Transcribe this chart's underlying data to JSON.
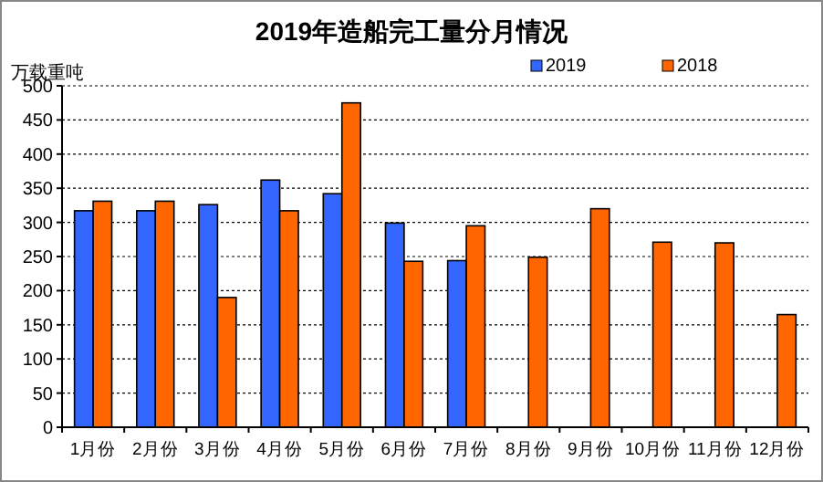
{
  "chart_data": {
    "type": "bar",
    "title": "2019年造船完工量分月情况",
    "ylabel": "万载重吨",
    "categories": [
      "1月份",
      "2月份",
      "3月份",
      "4月份",
      "5月份",
      "6月份",
      "7月份",
      "8月份",
      "9月份",
      "10月份",
      "11月份",
      "12月份"
    ],
    "series": [
      {
        "name": "2019",
        "color": "#3366ff",
        "values": [
          317,
          317,
          326,
          362,
          342,
          299,
          244,
          null,
          null,
          null,
          null,
          null
        ]
      },
      {
        "name": "2018",
        "color": "#ff6600",
        "values": [
          331,
          331,
          190,
          317,
          475,
          243,
          295,
          249,
          320,
          271,
          270,
          165
        ]
      }
    ],
    "ylim": [
      0,
      500
    ],
    "yticks": [
      0,
      50,
      100,
      150,
      200,
      250,
      300,
      350,
      400,
      450,
      500
    ],
    "grid": "y",
    "legend": "top right"
  }
}
